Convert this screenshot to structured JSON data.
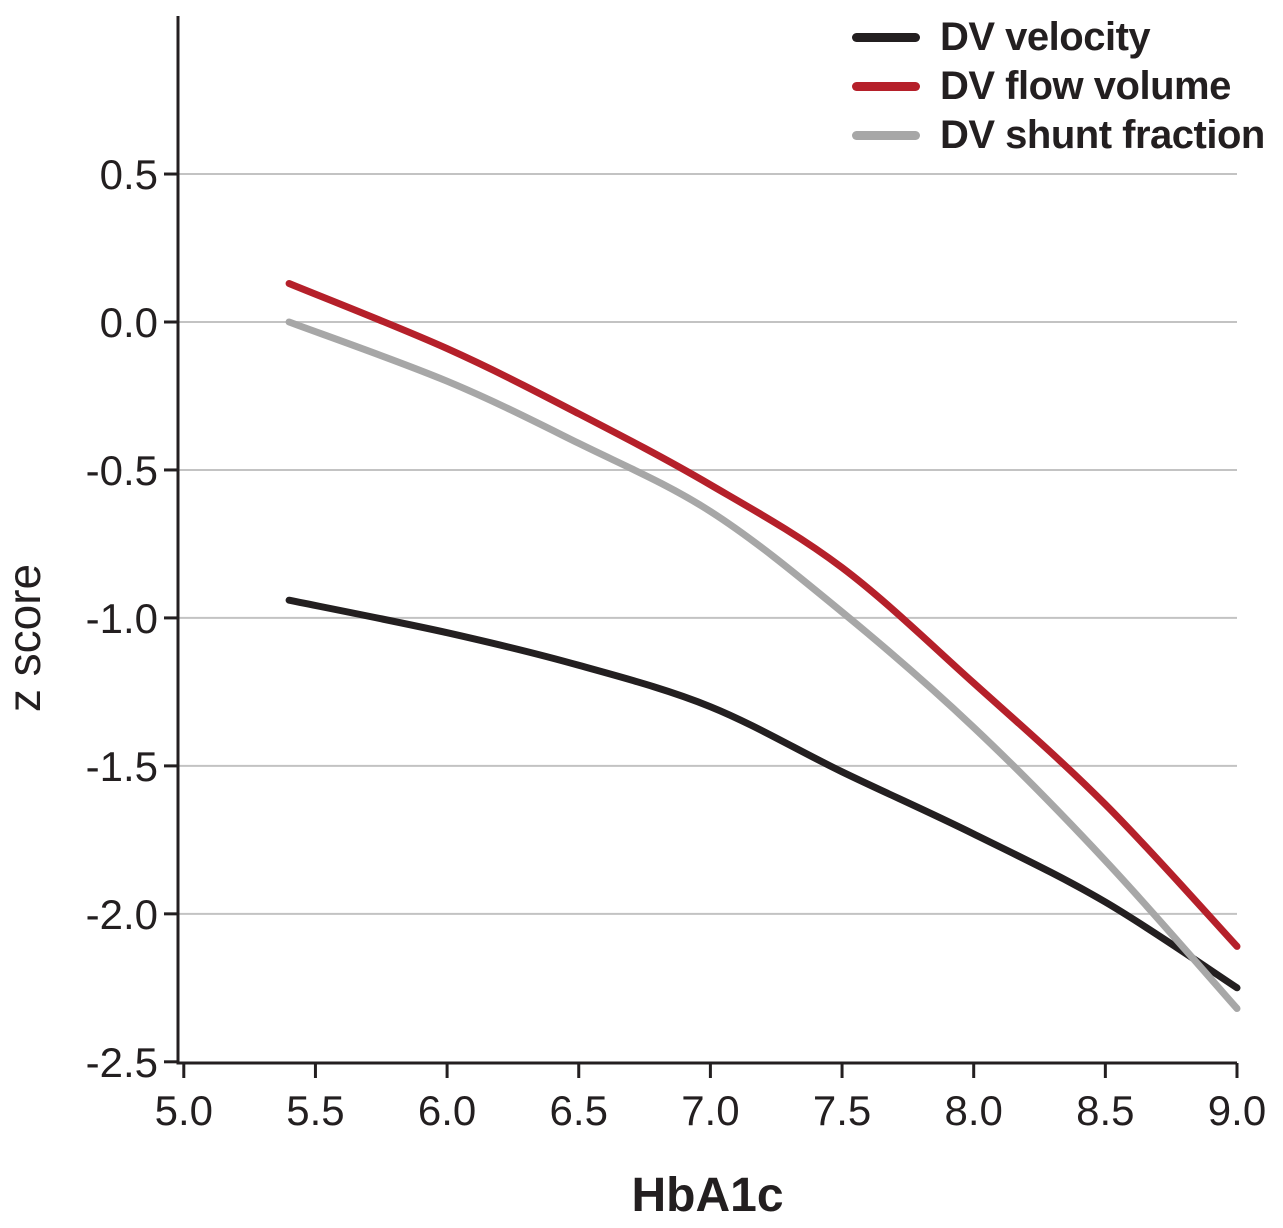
{
  "page": {
    "background": "#ffffff"
  },
  "chart_data": {
    "type": "line",
    "title": "",
    "xlabel": "HbA1c",
    "ylabel": "z score",
    "xlim": [
      4.978,
      9.0
    ],
    "ylim": [
      -2.504,
      1.034
    ],
    "x_ticks": {
      "values": [
        5.0,
        5.5,
        6.0,
        6.5,
        7.0,
        7.5,
        8.0,
        8.5,
        9.0
      ],
      "labels": [
        "5.0",
        "5.5",
        "6.0",
        "6.5",
        "7.0",
        "7.5",
        "8.0",
        "8.5",
        "9.0"
      ]
    },
    "y_ticks": {
      "values": [
        0.5,
        0.0,
        -0.5,
        -1.0,
        -1.5,
        -2.0,
        -2.5
      ],
      "labels": [
        "0.5",
        "0.0",
        "-0.5",
        "-1.0",
        "-1.5",
        "-2.0",
        "-2.5"
      ]
    },
    "grid": {
      "horizontal": true,
      "vertical": false,
      "color": "#c3c3c3"
    },
    "axis_color": "#231f20",
    "text_color": "#231f20",
    "legend_position": "top-right",
    "series": [
      {
        "name": "DV velocity",
        "color": "#231f20",
        "x": [
          5.4,
          6.0,
          6.5,
          7.0,
          7.5,
          8.0,
          8.5,
          9.0
        ],
        "y": [
          -0.94,
          -1.05,
          -1.16,
          -1.3,
          -1.52,
          -1.73,
          -1.96,
          -2.25
        ]
      },
      {
        "name": "DV flow volume",
        "color": "#b5202a",
        "x": [
          5.4,
          6.0,
          6.5,
          7.0,
          7.5,
          8.0,
          8.5,
          9.0
        ],
        "y": [
          0.13,
          -0.09,
          -0.31,
          -0.55,
          -0.83,
          -1.22,
          -1.63,
          -2.11
        ]
      },
      {
        "name": "DV shunt fraction",
        "color": "#a7a7a7",
        "x": [
          5.4,
          6.0,
          6.5,
          7.0,
          7.5,
          8.0,
          8.5,
          9.0
        ],
        "y": [
          0.0,
          -0.2,
          -0.41,
          -0.64,
          -0.98,
          -1.37,
          -1.82,
          -2.32
        ]
      }
    ]
  }
}
